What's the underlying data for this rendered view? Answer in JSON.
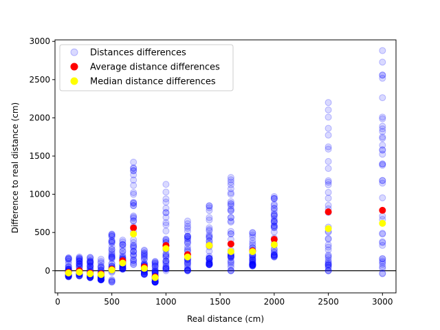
{
  "chart_data": {
    "type": "scatter",
    "title": "",
    "xlabel": "Real distance (cm)",
    "ylabel": "Difference to real distance (cm)",
    "xlim": [
      -25,
      3125
    ],
    "ylim": [
      -290,
      3020
    ],
    "xticks": [
      0,
      500,
      1000,
      1500,
      2000,
      2500,
      3000
    ],
    "yticks": [
      0,
      500,
      1000,
      1500,
      2000,
      2500,
      3000
    ],
    "zero_line": 0,
    "grid": false,
    "legend_position": "top-left",
    "series": [
      {
        "name": "Distances differences",
        "color": "#0000ff",
        "marker": "circle",
        "alpha": 0.15,
        "groups": [
          {
            "x": 100,
            "ymin": -80,
            "ymax": 170
          },
          {
            "x": 200,
            "ymin": -70,
            "ymax": 180
          },
          {
            "x": 300,
            "ymin": -90,
            "ymax": 175
          },
          {
            "x": 400,
            "ymin": -120,
            "ymax": 150
          },
          {
            "x": 500,
            "ymin": -150,
            "ymax": 480
          },
          {
            "x": 600,
            "ymin": 20,
            "ymax": 400
          },
          {
            "x": 700,
            "ymin": 80,
            "ymax": 1420
          },
          {
            "x": 800,
            "ymin": -50,
            "ymax": 270
          },
          {
            "x": 900,
            "ymin": -150,
            "ymax": 120
          },
          {
            "x": 1000,
            "ymin": 0,
            "ymax": 1130
          },
          {
            "x": 1200,
            "ymin": 0,
            "ymax": 650
          },
          {
            "x": 1400,
            "ymin": 80,
            "ymax": 850
          },
          {
            "x": 1600,
            "ymin": 0,
            "ymax": 1220
          },
          {
            "x": 1800,
            "ymin": 60,
            "ymax": 500
          },
          {
            "x": 2000,
            "ymin": 180,
            "ymax": 970
          },
          {
            "x": 2500,
            "ymin": 0,
            "ymax": 2200
          },
          {
            "x": 3000,
            "ymin": -40,
            "ymax": 2880
          }
        ]
      },
      {
        "name": "Average distance differences",
        "color": "#ff0000",
        "marker": "circle",
        "points": [
          [
            100,
            -20
          ],
          [
            200,
            0
          ],
          [
            300,
            -30
          ],
          [
            400,
            -40
          ],
          [
            500,
            20
          ],
          [
            600,
            130
          ],
          [
            700,
            560
          ],
          [
            800,
            50
          ],
          [
            900,
            -80
          ],
          [
            1000,
            330
          ],
          [
            1200,
            210
          ],
          [
            1400,
            330
          ],
          [
            1600,
            350
          ],
          [
            1800,
            260
          ],
          [
            2000,
            410
          ],
          [
            2500,
            770
          ],
          [
            3000,
            790
          ]
        ]
      },
      {
        "name": "Median distance differences",
        "color": "#ffff00",
        "marker": "circle",
        "points": [
          [
            100,
            -30
          ],
          [
            200,
            -20
          ],
          [
            300,
            -40
          ],
          [
            400,
            -50
          ],
          [
            500,
            10
          ],
          [
            600,
            100
          ],
          [
            700,
            480
          ],
          [
            800,
            30
          ],
          [
            900,
            -90
          ],
          [
            1000,
            290
          ],
          [
            1200,
            180
          ],
          [
            1400,
            330
          ],
          [
            1600,
            250
          ],
          [
            1800,
            250
          ],
          [
            2000,
            340
          ],
          [
            2500,
            550
          ],
          [
            3000,
            620
          ]
        ]
      }
    ]
  }
}
